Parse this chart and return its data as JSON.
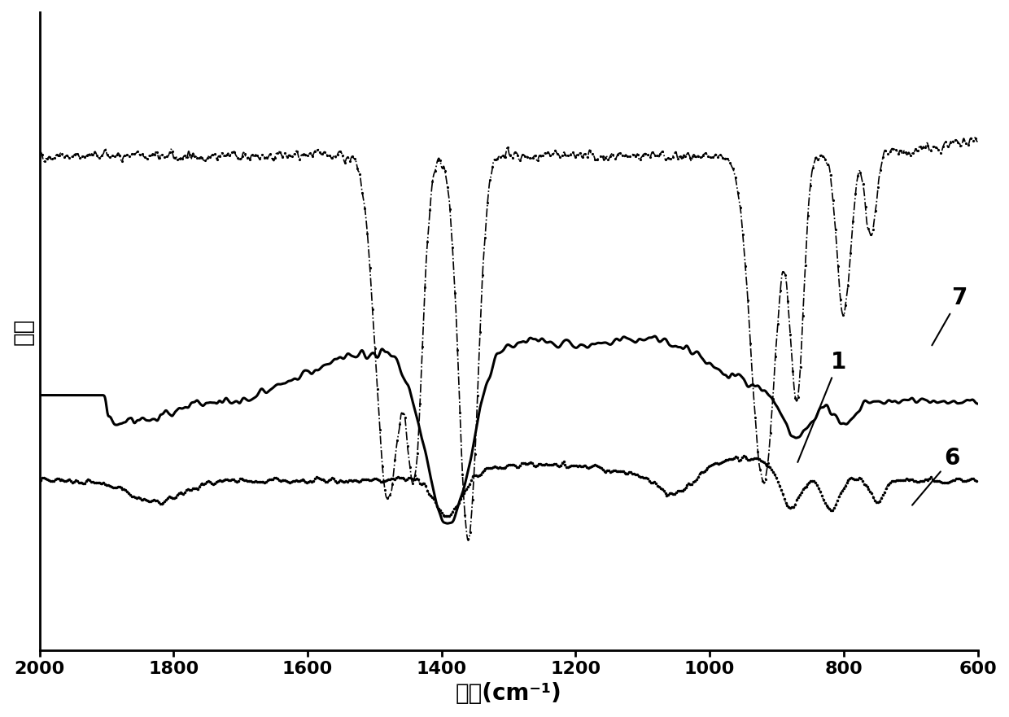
{
  "x_min": 600,
  "x_max": 2000,
  "xlabel": "波数(cm⁻¹)",
  "ylabel": "强度",
  "xticks": [
    2000,
    1800,
    1600,
    1400,
    1200,
    1000,
    800,
    600
  ],
  "background_color": "#ffffff",
  "curve1_label": "1",
  "curve6_label": "6",
  "curve7_label": "7",
  "label_fontsize": 20,
  "tick_fontsize": 16
}
